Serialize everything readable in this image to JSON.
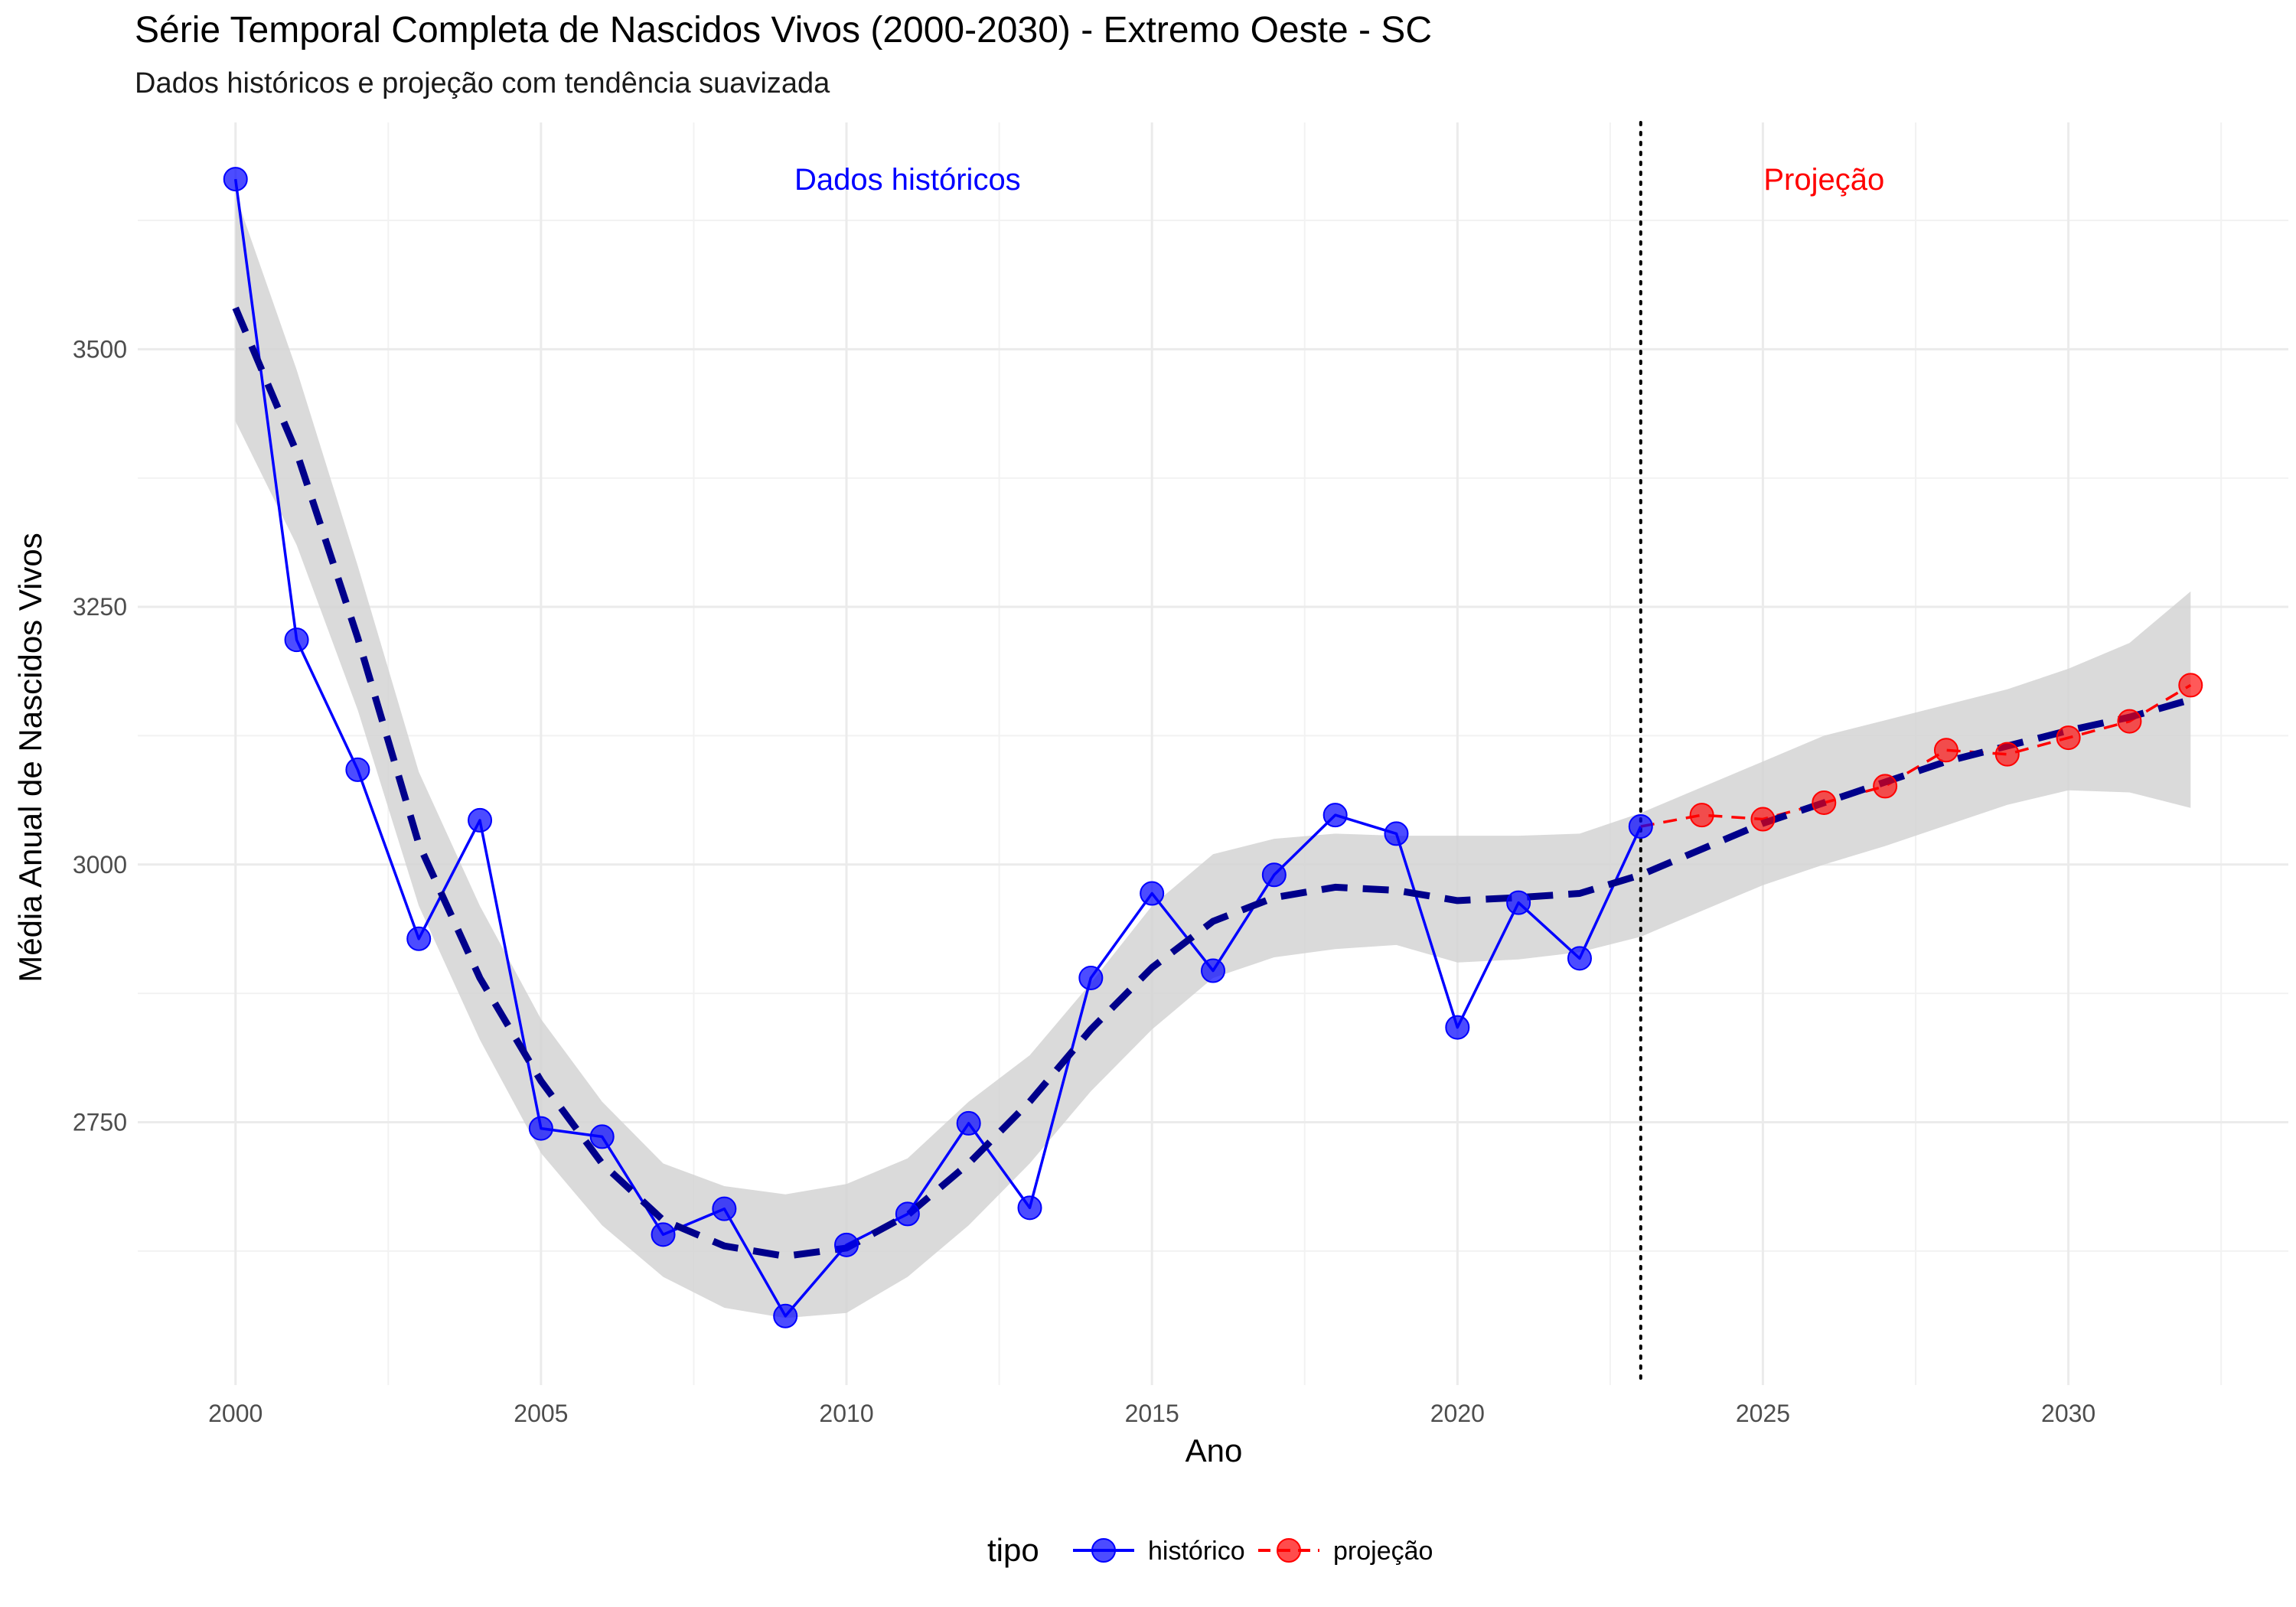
{
  "chart_data": {
    "type": "line",
    "title": "Série Temporal Completa de Nascidos Vivos (2000-2030) -  Extremo Oeste - SC",
    "subtitle": "Dados históricos e projeção com tendência suavizada",
    "xlabel": "Ano",
    "ylabel": "Média Anual de Nascidos Vivos",
    "xlim": [
      1998.4,
      2033.6
    ],
    "ylim": [
      2495,
      3720
    ],
    "x_ticks": [
      2000,
      2005,
      2010,
      2015,
      2020,
      2025,
      2030
    ],
    "y_ticks": [
      2750,
      3000,
      3250,
      3500
    ],
    "grid": true,
    "legend": {
      "title": "tipo",
      "position": "bottom",
      "entries": [
        {
          "label": "histórico",
          "color": "#0000ff"
        },
        {
          "label": "projeção",
          "color": "#ff0000"
        }
      ]
    },
    "annotations": [
      {
        "text": "Dados históricos",
        "x": 2011,
        "y": 3665,
        "color": "#0000ff"
      },
      {
        "text": "Projeção",
        "x": 2026,
        "y": 3665,
        "color": "#ff0000"
      }
    ],
    "divider_x": 2023,
    "series": [
      {
        "name": "histórico",
        "color": "#0000ff",
        "x": [
          2000,
          2001,
          2002,
          2003,
          2004,
          2005,
          2006,
          2007,
          2008,
          2009,
          2010,
          2011,
          2012,
          2013,
          2014,
          2015,
          2016,
          2017,
          2018,
          2019,
          2020,
          2021,
          2022,
          2023
        ],
        "y": [
          3665,
          3218,
          3092,
          2928,
          3043,
          2744,
          2736,
          2641,
          2666,
          2562,
          2631,
          2661,
          2749,
          2667,
          2890,
          2972,
          2897,
          2990,
          3048,
          3030,
          2842,
          2963,
          2909,
          3037
        ]
      },
      {
        "name": "projeção",
        "color": "#ff0000",
        "x": [
          2023,
          2024,
          2025,
          2026,
          2027,
          2028,
          2029,
          2030,
          2031,
          2032
        ],
        "y": [
          3037,
          3048,
          3044,
          3060,
          3076,
          3111,
          3107,
          3123,
          3139,
          3174
        ]
      }
    ],
    "trend": {
      "color": "#00008b",
      "x": [
        2000,
        2001,
        2002,
        2003,
        2004,
        2005,
        2006,
        2007,
        2008,
        2009,
        2010,
        2011,
        2012,
        2013,
        2014,
        2015,
        2016,
        2017,
        2018,
        2019,
        2020,
        2021,
        2022,
        2023,
        2024,
        2025,
        2026,
        2027,
        2028,
        2029,
        2030,
        2031,
        2032
      ],
      "y": [
        3540,
        3400,
        3220,
        3020,
        2890,
        2790,
        2710,
        2655,
        2630,
        2620,
        2628,
        2660,
        2710,
        2770,
        2840,
        2900,
        2945,
        2968,
        2978,
        2975,
        2965,
        2968,
        2972,
        2990,
        3015,
        3040,
        3060,
        3080,
        3100,
        3115,
        3130,
        3143,
        3160
      ]
    },
    "ribbon": {
      "color": "#d3d3d3",
      "x": [
        2000,
        2001,
        2002,
        2003,
        2004,
        2005,
        2006,
        2007,
        2008,
        2009,
        2010,
        2011,
        2012,
        2013,
        2014,
        2015,
        2016,
        2017,
        2018,
        2019,
        2020,
        2021,
        2022,
        2023,
        2024,
        2025,
        2026,
        2027,
        2028,
        2029,
        2030,
        2031,
        2032
      ],
      "upper": [
        3650,
        3480,
        3290,
        3090,
        2960,
        2850,
        2770,
        2710,
        2688,
        2680,
        2690,
        2715,
        2770,
        2815,
        2885,
        2960,
        3010,
        3025,
        3030,
        3028,
        3028,
        3028,
        3030,
        3050,
        3075,
        3100,
        3125,
        3140,
        3155,
        3170,
        3190,
        3215,
        3265
      ],
      "lower": [
        3430,
        3310,
        3150,
        2960,
        2830,
        2720,
        2650,
        2600,
        2570,
        2560,
        2565,
        2600,
        2650,
        2710,
        2780,
        2840,
        2890,
        2910,
        2918,
        2922,
        2905,
        2908,
        2915,
        2930,
        2955,
        2980,
        3000,
        3018,
        3038,
        3058,
        3072,
        3070,
        3055
      ]
    }
  }
}
